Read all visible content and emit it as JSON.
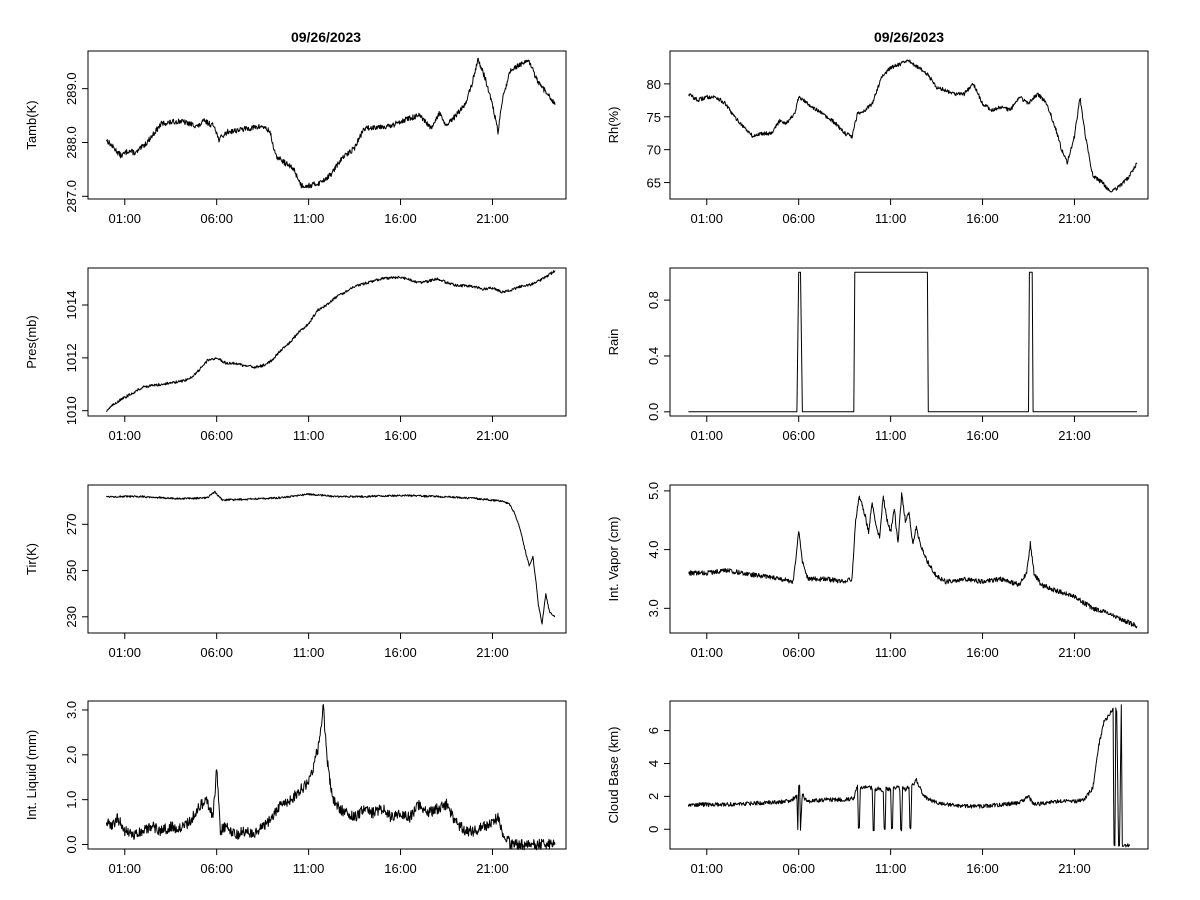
{
  "figure": {
    "left_title": "09/26/2023",
    "right_title": "09/26/2023"
  },
  "chart_data": [
    {
      "type": "line",
      "ylabel": "Tamb(K)",
      "xlim": [
        -1,
        25
      ],
      "ylim": [
        286.95,
        289.7
      ],
      "x_ticks": [
        1,
        6,
        11,
        16,
        21
      ],
      "x_tick_labels": [
        "01:00",
        "06:00",
        "11:00",
        "16:00",
        "21:00"
      ],
      "y_ticks": [
        287.0,
        288.0,
        289.0
      ],
      "y_tick_labels": [
        "287.0",
        "288.0",
        "289.0"
      ],
      "y_tick_rotated": true,
      "noise": 0.05,
      "x": [
        0,
        0.4,
        0.8,
        1.2,
        1.6,
        2.2,
        3.0,
        4.0,
        5.0,
        5.3,
        5.9,
        6.1,
        6.6,
        7.5,
        8.5,
        8.9,
        9.2,
        9.8,
        10.2,
        10.6,
        11.1,
        11.6,
        12.2,
        12.8,
        13.5,
        14.0,
        14.8,
        15.5,
        16.0,
        16.5,
        17.0,
        17.3,
        17.7,
        18.1,
        18.5,
        19.0,
        19.5,
        19.9,
        20.2,
        20.6,
        21.0,
        21.3,
        21.6,
        22.0,
        22.5,
        23.0,
        23.5,
        24.0,
        24.4
      ],
      "y": [
        288.05,
        287.9,
        287.75,
        287.85,
        287.8,
        288.0,
        288.35,
        288.4,
        288.3,
        288.4,
        288.3,
        288.05,
        288.2,
        288.25,
        288.3,
        288.2,
        287.75,
        287.6,
        287.5,
        287.2,
        287.2,
        287.25,
        287.4,
        287.7,
        287.9,
        288.25,
        288.3,
        288.3,
        288.4,
        288.45,
        288.5,
        288.4,
        288.25,
        288.55,
        288.3,
        288.5,
        288.7,
        289.1,
        289.55,
        289.2,
        288.7,
        288.2,
        288.9,
        289.35,
        289.45,
        289.5,
        289.1,
        288.9,
        288.7
      ]
    },
    {
      "type": "line",
      "ylabel": "Rh(%)",
      "xlim": [
        -1,
        25
      ],
      "ylim": [
        62.5,
        85.0
      ],
      "x_ticks": [
        1,
        6,
        11,
        16,
        21
      ],
      "x_tick_labels": [
        "01:00",
        "06:00",
        "11:00",
        "16:00",
        "21:00"
      ],
      "y_ticks": [
        65,
        70,
        75,
        80
      ],
      "y_tick_labels": [
        "65",
        "70",
        "75",
        "80"
      ],
      "y_tick_rotated": false,
      "noise": 0.3,
      "x": [
        0,
        0.5,
        1.0,
        1.5,
        2.0,
        2.5,
        3.0,
        3.5,
        4.0,
        4.5,
        5.0,
        5.3,
        5.8,
        6.0,
        6.5,
        7.0,
        7.5,
        8.0,
        8.5,
        8.9,
        9.2,
        9.6,
        10.0,
        10.5,
        11.0,
        11.5,
        12.0,
        12.5,
        13.0,
        13.5,
        14.0,
        14.5,
        15.0,
        15.5,
        16.0,
        16.5,
        17.0,
        17.5,
        18.0,
        18.5,
        19.0,
        19.5,
        20.0,
        20.3,
        20.6,
        21.0,
        21.3,
        21.6,
        22.0,
        22.5,
        23.0,
        23.5,
        24.0,
        24.4
      ],
      "y": [
        78.5,
        77.5,
        78.0,
        78.0,
        77.0,
        75.0,
        73.5,
        72.0,
        72.5,
        72.5,
        74.5,
        74.0,
        75.5,
        78.0,
        77.0,
        76.0,
        75.0,
        74.0,
        72.5,
        72.0,
        75.5,
        76.0,
        77.0,
        81.0,
        82.5,
        83.0,
        83.5,
        82.5,
        81.5,
        79.5,
        79.0,
        78.5,
        78.5,
        80.0,
        77.0,
        76.0,
        76.5,
        76.0,
        78.0,
        77.0,
        78.5,
        77.0,
        73.0,
        70.0,
        68.0,
        72.0,
        78.0,
        72.0,
        66.0,
        65.0,
        63.5,
        64.5,
        66.0,
        68.0
      ]
    },
    {
      "type": "line",
      "ylabel": "Pres(mb)",
      "xlim": [
        -1,
        25
      ],
      "ylim": [
        1009.8,
        1015.4
      ],
      "x_ticks": [
        1,
        6,
        11,
        16,
        21
      ],
      "x_tick_labels": [
        "01:00",
        "06:00",
        "11:00",
        "16:00",
        "21:00"
      ],
      "y_ticks": [
        1010,
        1012,
        1014
      ],
      "y_tick_labels": [
        "1010",
        "1012",
        "1014"
      ],
      "y_tick_rotated": true,
      "noise": 0.05,
      "x": [
        0,
        0.5,
        1.0,
        1.5,
        2.0,
        3.0,
        4.0,
        4.5,
        5.0,
        5.5,
        6.0,
        6.5,
        7.0,
        7.5,
        8.0,
        8.5,
        9.0,
        9.5,
        10.0,
        10.5,
        11.0,
        11.5,
        12.0,
        12.5,
        13.0,
        13.5,
        14.0,
        15.0,
        16.0,
        16.5,
        17.0,
        17.5,
        18.0,
        18.5,
        19.0,
        20.0,
        20.5,
        21.0,
        21.5,
        22.0,
        22.5,
        23.0,
        23.5,
        24.0,
        24.4
      ],
      "y": [
        1010.0,
        1010.3,
        1010.5,
        1010.7,
        1010.9,
        1011.0,
        1011.1,
        1011.2,
        1011.5,
        1011.9,
        1012.0,
        1011.8,
        1011.8,
        1011.7,
        1011.65,
        1011.7,
        1011.9,
        1012.3,
        1012.6,
        1013.0,
        1013.3,
        1013.8,
        1014.0,
        1014.3,
        1014.5,
        1014.7,
        1014.8,
        1015.0,
        1015.05,
        1014.95,
        1014.85,
        1014.9,
        1015.0,
        1014.85,
        1014.75,
        1014.7,
        1014.6,
        1014.65,
        1014.5,
        1014.55,
        1014.7,
        1014.75,
        1014.9,
        1015.1,
        1015.3
      ]
    },
    {
      "type": "line",
      "ylabel": "Rain",
      "xlim": [
        -1,
        25
      ],
      "ylim": [
        -0.03,
        1.03
      ],
      "x_ticks": [
        1,
        6,
        11,
        16,
        21
      ],
      "x_tick_labels": [
        "01:00",
        "06:00",
        "11:00",
        "16:00",
        "21:00"
      ],
      "y_ticks": [
        0.0,
        0.4,
        0.8
      ],
      "y_tick_labels": [
        "0.0",
        "0.4",
        "0.8"
      ],
      "y_tick_rotated": true,
      "noise": 0,
      "x": [
        0,
        5.9,
        6.0,
        6.1,
        6.2,
        6.3,
        9.0,
        9.05,
        13.0,
        13.05,
        18.5,
        18.55,
        18.7,
        18.75,
        24.4
      ],
      "y": [
        0,
        0,
        1,
        1,
        0,
        0,
        0,
        1,
        1,
        0,
        0,
        1,
        1,
        0,
        0
      ]
    },
    {
      "type": "line",
      "ylabel": "Tir(K)",
      "xlim": [
        -1,
        25
      ],
      "ylim": [
        223,
        287
      ],
      "x_ticks": [
        1,
        6,
        11,
        16,
        21
      ],
      "x_tick_labels": [
        "01:00",
        "06:00",
        "11:00",
        "16:00",
        "21:00"
      ],
      "y_ticks": [
        230,
        250,
        270
      ],
      "y_tick_labels": [
        "230",
        "250",
        "270"
      ],
      "y_tick_rotated": true,
      "noise": 0.4,
      "x": [
        0,
        2.0,
        4.0,
        5.5,
        5.9,
        6.3,
        8.0,
        9.5,
        11.0,
        12.5,
        14.0,
        16.0,
        18.0,
        19.5,
        21.0,
        21.5,
        21.9,
        22.2,
        22.5,
        22.8,
        23.0,
        23.2,
        23.4,
        23.5,
        23.7,
        23.9,
        24.1,
        24.4
      ],
      "y": [
        282,
        282,
        281,
        281.5,
        284,
        280.5,
        281,
        281.5,
        283,
        282,
        282,
        282.5,
        282,
        281.5,
        280.5,
        280,
        279,
        275,
        268,
        258,
        252,
        256,
        243,
        235,
        227,
        240,
        232,
        230
      ]
    },
    {
      "type": "line",
      "ylabel": "Int. Vapor (cm)",
      "xlim": [
        -1,
        25
      ],
      "ylim": [
        2.58,
        5.1
      ],
      "x_ticks": [
        1,
        6,
        11,
        16,
        21
      ],
      "x_tick_labels": [
        "01:00",
        "06:00",
        "11:00",
        "16:00",
        "21:00"
      ],
      "y_ticks": [
        3.0,
        4.0,
        5.0
      ],
      "y_tick_labels": [
        "3.0",
        "4.0",
        "5.0"
      ],
      "y_tick_rotated": true,
      "noise": 0.04,
      "x": [
        0,
        1.0,
        2.0,
        3.0,
        4.0,
        5.0,
        5.7,
        6.0,
        6.2,
        6.5,
        7.5,
        8.5,
        8.9,
        9.1,
        9.3,
        9.6,
        9.8,
        10.0,
        10.2,
        10.4,
        10.6,
        10.8,
        11.0,
        11.2,
        11.4,
        11.6,
        11.8,
        12.0,
        12.2,
        12.4,
        12.6,
        13.0,
        13.5,
        14.0,
        15.0,
        16.0,
        17.0,
        18.0,
        18.4,
        18.6,
        18.8,
        19.2,
        20.0,
        21.0,
        22.0,
        23.0,
        24.0,
        24.4
      ],
      "y": [
        3.6,
        3.6,
        3.65,
        3.6,
        3.55,
        3.5,
        3.45,
        4.3,
        3.8,
        3.5,
        3.5,
        3.45,
        3.5,
        4.5,
        4.9,
        4.6,
        4.3,
        4.8,
        4.4,
        4.2,
        4.9,
        4.5,
        4.3,
        4.7,
        4.1,
        4.95,
        4.5,
        4.6,
        4.1,
        4.4,
        4.1,
        3.8,
        3.55,
        3.45,
        3.5,
        3.45,
        3.5,
        3.4,
        3.6,
        4.1,
        3.6,
        3.4,
        3.3,
        3.2,
        3.0,
        2.9,
        2.75,
        2.7
      ]
    },
    {
      "type": "line",
      "ylabel": "Int. Liquid (mm)",
      "xlim": [
        -1,
        25
      ],
      "ylim": [
        -0.1,
        3.2
      ],
      "x_ticks": [
        1,
        6,
        11,
        16,
        21
      ],
      "x_tick_labels": [
        "01:00",
        "06:00",
        "11:00",
        "16:00",
        "21:00"
      ],
      "y_ticks": [
        0.0,
        1.0,
        2.0,
        3.0
      ],
      "y_tick_labels": [
        "0.0",
        "1.0",
        "2.0",
        "3.0"
      ],
      "y_tick_rotated": true,
      "noise": 0.12,
      "x": [
        0,
        0.3,
        0.6,
        1.0,
        1.5,
        2.0,
        2.5,
        3.0,
        3.5,
        4.0,
        4.5,
        5.0,
        5.4,
        5.8,
        6.0,
        6.2,
        6.5,
        7.0,
        7.5,
        8.0,
        8.5,
        9.0,
        9.5,
        10.0,
        10.5,
        11.0,
        11.3,
        11.6,
        11.8,
        12.0,
        12.3,
        12.7,
        13.0,
        13.5,
        14.0,
        14.5,
        15.0,
        15.5,
        16.0,
        16.5,
        17.0,
        17.5,
        18.0,
        18.5,
        19.0,
        19.5,
        20.0,
        20.5,
        21.0,
        21.3,
        21.6,
        22.0,
        22.5,
        23.0,
        23.5,
        24.0,
        24.4
      ],
      "y": [
        0.5,
        0.4,
        0.6,
        0.3,
        0.2,
        0.3,
        0.4,
        0.3,
        0.4,
        0.35,
        0.5,
        0.8,
        1.0,
        0.6,
        1.7,
        0.3,
        0.4,
        0.2,
        0.3,
        0.2,
        0.4,
        0.6,
        0.9,
        1.0,
        1.2,
        1.4,
        1.8,
        2.3,
        3.1,
        1.9,
        1.0,
        0.8,
        0.7,
        0.6,
        0.8,
        0.7,
        0.8,
        0.6,
        0.7,
        0.6,
        0.9,
        0.7,
        0.8,
        0.9,
        0.5,
        0.3,
        0.3,
        0.4,
        0.5,
        0.6,
        0.2,
        0.0,
        0.0,
        0.0,
        0.0,
        0.0,
        0.0
      ]
    },
    {
      "type": "line",
      "ylabel": "Cloud Base (km)",
      "xlim": [
        -1,
        25
      ],
      "ylim": [
        -1.2,
        7.8
      ],
      "x_ticks": [
        1,
        6,
        11,
        16,
        21
      ],
      "x_tick_labels": [
        "01:00",
        "06:00",
        "11:00",
        "16:00",
        "21:00"
      ],
      "y_ticks": [
        0,
        2,
        4,
        6
      ],
      "y_tick_labels": [
        "0",
        "2",
        "4",
        "6"
      ],
      "y_tick_rotated": true,
      "noise": 0.12,
      "x": [
        0,
        2.0,
        4.0,
        5.5,
        5.9,
        5.95,
        6.0,
        6.05,
        6.1,
        6.2,
        6.3,
        6.5,
        7.5,
        8.5,
        9.0,
        9.2,
        9.25,
        9.3,
        9.35,
        9.6,
        10.0,
        10.05,
        10.1,
        10.15,
        10.4,
        10.6,
        10.65,
        10.7,
        10.75,
        11.0,
        11.05,
        11.1,
        11.15,
        11.4,
        11.5,
        11.55,
        11.6,
        11.65,
        11.8,
        12.0,
        12.05,
        12.1,
        12.15,
        12.4,
        12.8,
        13.5,
        15.0,
        16.0,
        17.0,
        18.0,
        18.5,
        18.8,
        19.5,
        20.0,
        21.0,
        21.5,
        22.0,
        22.3,
        22.6,
        22.9,
        23.0,
        23.1,
        23.15,
        23.2,
        23.25,
        23.3,
        23.35,
        23.4,
        23.45,
        23.5,
        23.55,
        23.6,
        23.65,
        23.7,
        23.75,
        24.0
      ],
      "y": [
        1.5,
        1.5,
        1.6,
        1.7,
        2.0,
        0.0,
        2.7,
        2.6,
        0.0,
        2.2,
        1.9,
        1.7,
        1.8,
        1.8,
        1.9,
        2.7,
        0.0,
        0.0,
        2.5,
        2.6,
        2.5,
        0.0,
        0.0,
        2.4,
        2.5,
        2.3,
        0.0,
        0.0,
        2.5,
        2.4,
        0.0,
        0.0,
        2.5,
        2.6,
        2.4,
        0.0,
        0.0,
        2.5,
        2.4,
        2.6,
        0.0,
        0.0,
        2.6,
        3.0,
        2.0,
        1.6,
        1.4,
        1.4,
        1.5,
        1.6,
        2.0,
        1.5,
        1.6,
        1.7,
        1.7,
        1.8,
        2.5,
        5.0,
        6.5,
        7.0,
        7.2,
        7.3,
        -1.0,
        -1.0,
        7.3,
        7.2,
        3.0,
        -1.0,
        -1.0,
        3.4,
        7.5,
        -1.0,
        -1.0,
        -1.0,
        -1.0,
        -1.0
      ]
    }
  ]
}
